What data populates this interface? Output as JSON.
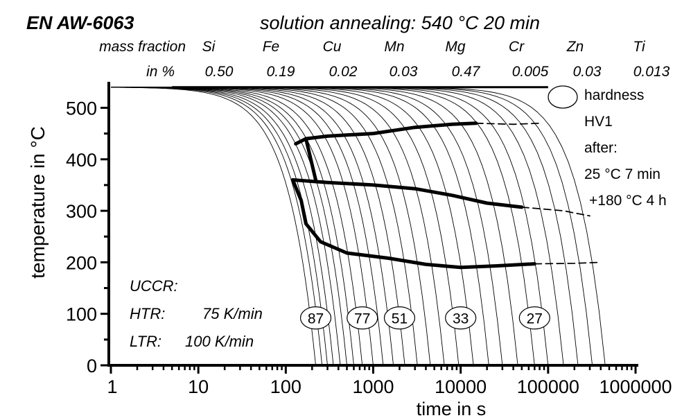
{
  "chart_data": {
    "type": "line",
    "title": "EN AW-6063",
    "subtitle": "solution annealing: 540 °C 20 min",
    "composition": {
      "row_label_1": "mass fraction",
      "row_label_2": "in %",
      "elements": [
        "Si",
        "Fe",
        "Cu",
        "Mn",
        "Mg",
        "Cr",
        "Zn",
        "Ti"
      ],
      "values": [
        "0.50",
        "0.19",
        "0.02",
        "0.03",
        "0.47",
        "0.005",
        "0.03",
        "0.013"
      ]
    },
    "xlabel": "time in s",
    "ylabel": "temperature in °C",
    "x_scale": "log",
    "xlim": [
      1,
      1000000
    ],
    "ylim": [
      0,
      540
    ],
    "x_ticks": [
      1,
      10,
      100,
      1000,
      10000,
      100000,
      1000000
    ],
    "x_tick_labels": [
      "1",
      "10",
      "100",
      "1000",
      "10000",
      "100000",
      "1000000"
    ],
    "y_ticks": [
      0,
      100,
      200,
      300,
      400,
      500
    ],
    "y_tick_labels": [
      "0",
      "100",
      "200",
      "300",
      "400",
      "500"
    ],
    "grid": false,
    "cooling_curves_end_times_s": [
      220,
      260,
      300,
      350,
      420,
      500,
      600,
      750,
      1000,
      1300,
      1700,
      2300,
      3200,
      4500,
      6500,
      9500,
      14000,
      21000,
      30000,
      45000,
      70000,
      100000,
      150000,
      220000,
      320000,
      450000
    ],
    "series": [
      {
        "name": "",
        "style": "solid-bold",
        "x": [
          130,
          170,
          300,
          1000,
          3000,
          8000,
          15000
        ],
        "y": [
          430,
          440,
          445,
          450,
          462,
          468,
          470
        ]
      },
      {
        "name": "",
        "style": "dashed",
        "x": [
          15000,
          40000,
          80000
        ],
        "y": [
          470,
          468,
          470
        ]
      },
      {
        "name": "",
        "style": "solid-bold",
        "x": [
          170,
          220
        ],
        "y": [
          440,
          360
        ]
      },
      {
        "name": "",
        "style": "solid-bold",
        "x": [
          120,
          300,
          1000,
          3000,
          8000,
          20000,
          50000
        ],
        "y": [
          360,
          355,
          350,
          343,
          330,
          315,
          307
        ]
      },
      {
        "name": "",
        "style": "dashed",
        "x": [
          50000,
          150000,
          300000
        ],
        "y": [
          307,
          300,
          290
        ]
      },
      {
        "name": "",
        "style": "solid-bold",
        "x": [
          120,
          150,
          170,
          250,
          500,
          1500,
          4000,
          10000,
          25000,
          70000
        ],
        "y": [
          360,
          320,
          275,
          240,
          218,
          208,
          196,
          190,
          193,
          197
        ]
      },
      {
        "name": "",
        "style": "dashed",
        "x": [
          70000,
          200000,
          400000
        ],
        "y": [
          197,
          198,
          200
        ]
      }
    ],
    "hardness_labels": [
      {
        "value": "87",
        "time_s": 220,
        "temp_c": 92
      },
      {
        "value": "77",
        "time_s": 750,
        "temp_c": 92
      },
      {
        "value": "51",
        "time_s": 2000,
        "temp_c": 92
      },
      {
        "value": "33",
        "time_s": 10000,
        "temp_c": 92
      },
      {
        "value": "27",
        "time_s": 70000,
        "temp_c": 92
      }
    ],
    "legend": {
      "position": "top-right",
      "lines": [
        "hardness",
        "HV1",
        "after:",
        "25 °C 7 min",
        "+180 °C 4 h"
      ]
    },
    "annotations": {
      "uccr_label": "UCCR:",
      "htr_label": "HTR:",
      "htr_value": "75 K/min",
      "ltr_label": "LTR:",
      "ltr_value": "100 K/min"
    }
  }
}
